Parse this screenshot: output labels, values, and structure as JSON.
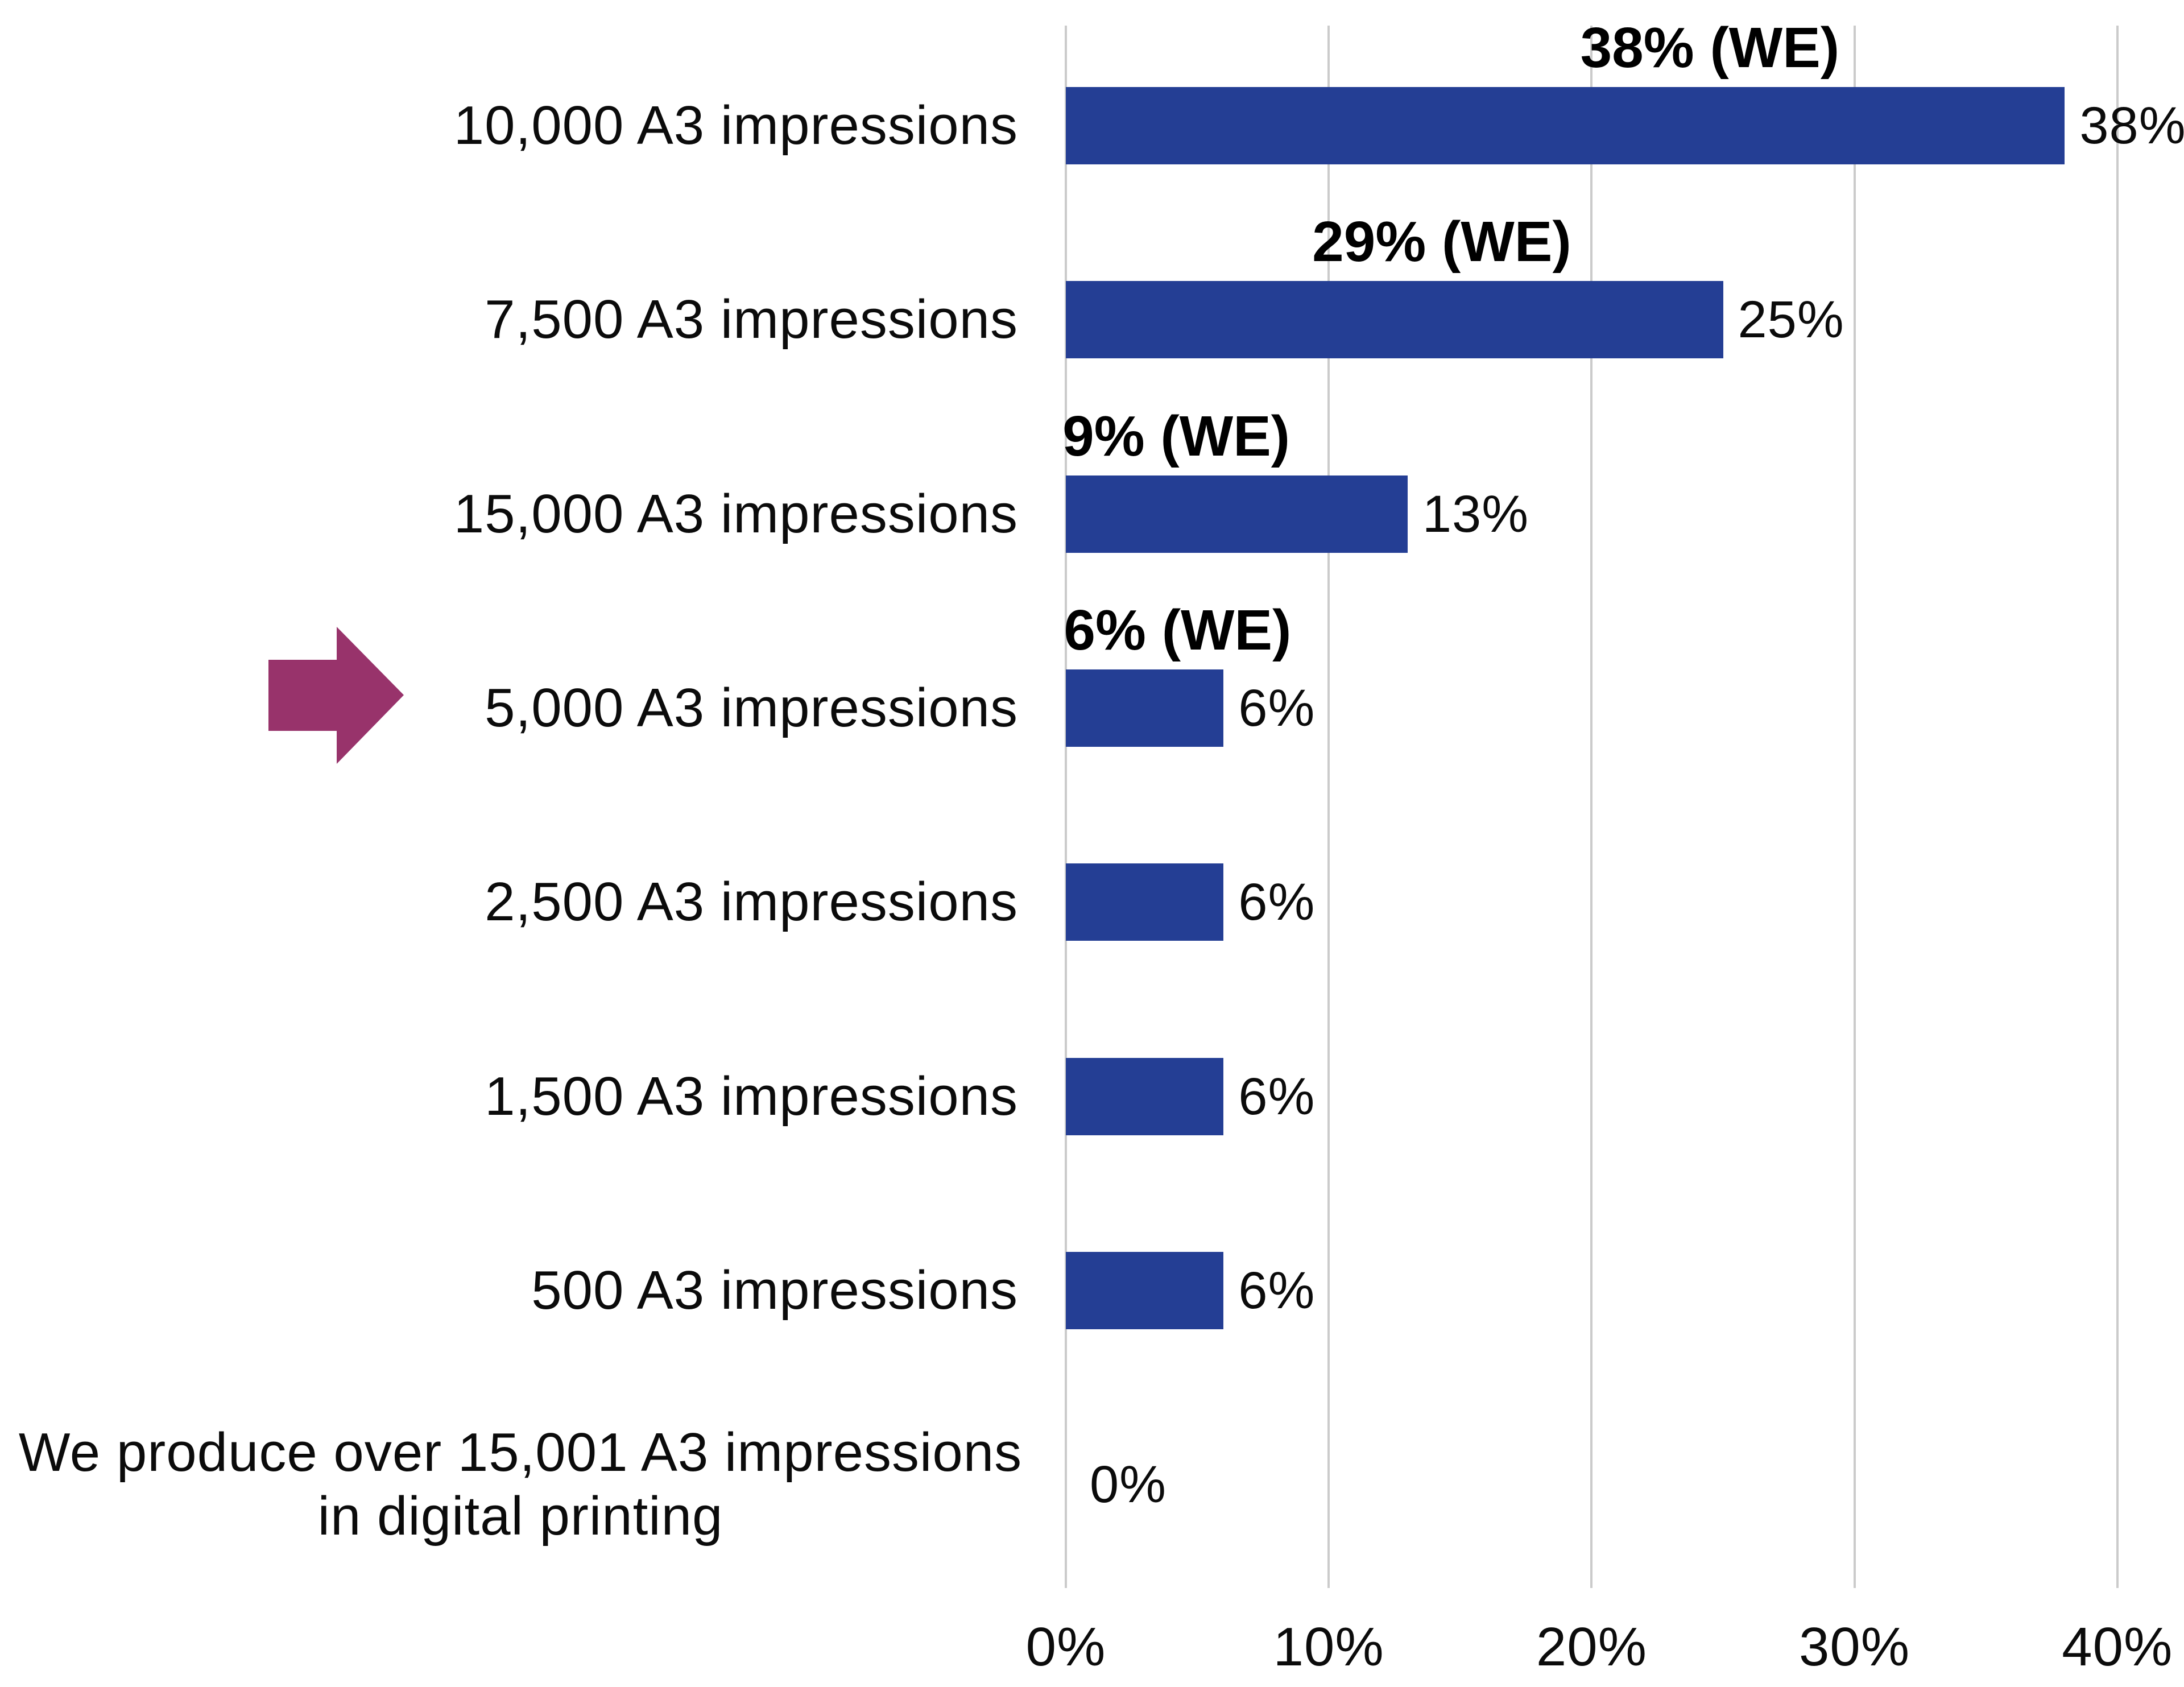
{
  "chart_data": {
    "type": "bar",
    "orientation": "horizontal",
    "title": "",
    "categories": [
      "10,000 A3 impressions",
      "7,500 A3 impressions",
      "15,000 A3 impressions",
      "5,000 A3 impressions",
      "2,500 A3 impressions",
      "1,500 A3 impressions",
      "500 A3 impressions",
      "We produce over 15,001 A3 impressions in digital printing"
    ],
    "values": [
      38,
      25,
      13,
      6,
      6,
      6,
      6,
      0
    ],
    "value_labels": [
      "38%",
      "25%",
      "13%",
      "6%",
      "6%",
      "6%",
      "6%",
      "0%"
    ],
    "we_series": {
      "name": "WE",
      "values": [
        38,
        29,
        9,
        6
      ],
      "labels": [
        "38% (WE)",
        "29% (WE)",
        "9% (WE)",
        "6% (WE)"
      ],
      "applies_to_rows": [
        0,
        1,
        2,
        3
      ]
    },
    "x_ticks": [
      "0%",
      "10%",
      "20%",
      "30%",
      "40%"
    ],
    "x_tick_values": [
      0,
      10,
      20,
      30,
      40
    ],
    "xlim": [
      0,
      40
    ],
    "grid": true,
    "legend": "none",
    "colors": {
      "bar": "#243E94",
      "arrow": "#98336B",
      "gridline": "#cbcbcb",
      "text": "#000000"
    }
  },
  "annotations": {
    "arrow": {
      "icon": "right-arrow-icon",
      "points_to_category": "5,000 A3 impressions"
    }
  }
}
